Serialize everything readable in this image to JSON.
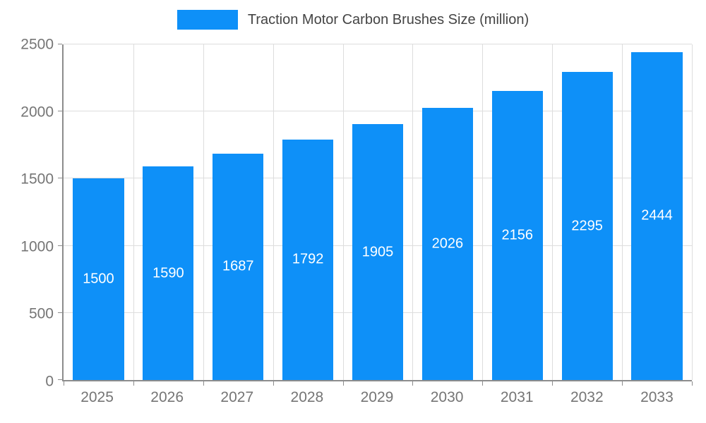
{
  "chart_data": {
    "type": "bar",
    "legend": "Traction Motor Carbon Brushes Size (million)",
    "categories": [
      "2025",
      "2026",
      "2027",
      "2028",
      "2029",
      "2030",
      "2031",
      "2032",
      "2033"
    ],
    "values": [
      1500,
      1590,
      1687,
      1792,
      1905,
      2026,
      2156,
      2295,
      2444
    ],
    "ylim": [
      0,
      2500
    ],
    "yticks": [
      0,
      500,
      1000,
      1500,
      2000,
      2500
    ],
    "grid": true,
    "legend_position": "top",
    "bar_color": "#0e90f8",
    "value_label_color": "#ffffff",
    "axis_text_color": "#757575",
    "legend_text_color": "#444444",
    "grid_color": "#dddddd",
    "axis_line_color": "#8c8c8c"
  }
}
